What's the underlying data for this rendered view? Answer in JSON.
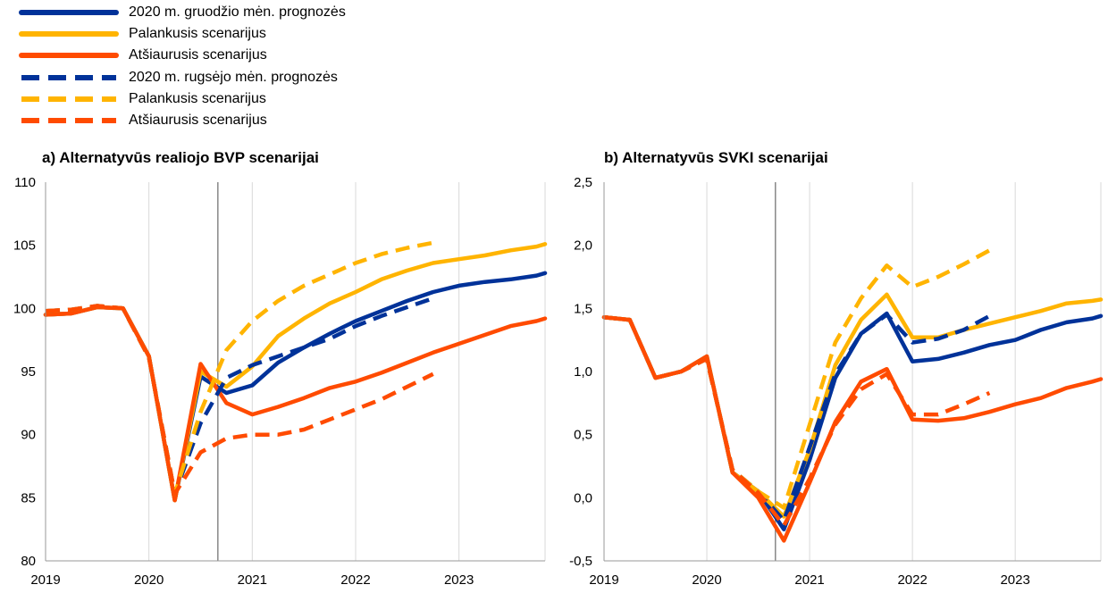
{
  "legend": [
    {
      "label": "2020 m. gruodžio mėn. prognozės",
      "color": "#003299",
      "dashed": false
    },
    {
      "label": "Palankusis scenarijus",
      "color": "#FFB400",
      "dashed": false
    },
    {
      "label": "Atšiaurusis scenarijus",
      "color": "#FF4B00",
      "dashed": false
    },
    {
      "label": "2020 m. rugsėjo mėn. prognozės",
      "color": "#003299",
      "dashed": true
    },
    {
      "label": "Palankusis scenarijus",
      "color": "#FFB400",
      "dashed": true
    },
    {
      "label": "Atšiaurusis scenarijus",
      "color": "#FF4B00",
      "dashed": true
    }
  ],
  "chart_data": [
    {
      "type": "line",
      "title": "a) Alternatyvūs realiojo BVP scenarijai",
      "x_ticks": [
        "2019",
        "2020",
        "2021",
        "2022",
        "2023"
      ],
      "y_ticks": [
        "80",
        "85",
        "90",
        "95",
        "100",
        "105",
        "110"
      ],
      "ylim": [
        80,
        110
      ],
      "xlim": [
        2019.0,
        2023.833
      ],
      "vertical_marker_x": 2020.667,
      "grid": "vertical at year boundaries",
      "series": [
        {
          "name": "2020 m. gruodžio mėn. prognozės",
          "color": "#003299",
          "dashed": false,
          "x": [
            2019.0,
            2019.25,
            2019.5,
            2019.75,
            2020.0,
            2020.25,
            2020.5,
            2020.75,
            2021.0,
            2021.25,
            2021.5,
            2021.75,
            2022.0,
            2022.25,
            2022.5,
            2022.75,
            2023.0,
            2023.25,
            2023.5,
            2023.75,
            2023.833
          ],
          "y": [
            99.5,
            99.6,
            100.1,
            100.0,
            96.2,
            84.8,
            94.6,
            93.3,
            93.9,
            95.7,
            96.9,
            98.0,
            99.0,
            99.8,
            100.6,
            101.3,
            101.8,
            102.1,
            102.3,
            102.6,
            102.8
          ]
        },
        {
          "name": "Palankusis scenarijus",
          "color": "#FFB400",
          "dashed": false,
          "x": [
            2019.0,
            2019.25,
            2019.5,
            2019.75,
            2020.0,
            2020.25,
            2020.5,
            2020.75,
            2021.0,
            2021.25,
            2021.5,
            2021.75,
            2022.0,
            2022.25,
            2022.5,
            2022.75,
            2023.0,
            2023.25,
            2023.5,
            2023.75,
            2023.833
          ],
          "y": [
            99.5,
            99.6,
            100.1,
            100.0,
            96.2,
            84.8,
            95.0,
            93.8,
            95.4,
            97.8,
            99.2,
            100.4,
            101.3,
            102.3,
            103.0,
            103.6,
            103.9,
            104.2,
            104.6,
            104.9,
            105.1
          ]
        },
        {
          "name": "Atšiaurusis scenarijus",
          "color": "#FF4B00",
          "dashed": false,
          "x": [
            2019.0,
            2019.25,
            2019.5,
            2019.75,
            2020.0,
            2020.25,
            2020.5,
            2020.75,
            2021.0,
            2021.25,
            2021.5,
            2021.75,
            2022.0,
            2022.25,
            2022.5,
            2022.75,
            2023.0,
            2023.25,
            2023.5,
            2023.75,
            2023.833
          ],
          "y": [
            99.5,
            99.6,
            100.1,
            100.0,
            96.2,
            84.8,
            95.6,
            92.5,
            91.6,
            92.2,
            92.9,
            93.7,
            94.2,
            94.9,
            95.7,
            96.5,
            97.2,
            97.9,
            98.6,
            99.0,
            99.2
          ]
        },
        {
          "name": "2020 m. rugsėjo mėn. prognozės",
          "color": "#003299",
          "dashed": true,
          "x": [
            2019.0,
            2019.25,
            2019.5,
            2019.75,
            2020.0,
            2020.25,
            2020.5,
            2020.75,
            2021.0,
            2021.25,
            2021.5,
            2021.75,
            2022.0,
            2022.25,
            2022.5,
            2022.75
          ],
          "y": [
            99.8,
            99.9,
            100.2,
            100.0,
            96.1,
            85.3,
            90.9,
            94.5,
            95.5,
            96.2,
            96.9,
            97.6,
            98.6,
            99.4,
            100.1,
            100.8
          ]
        },
        {
          "name": "Palankusis scenarijus",
          "color": "#FFB400",
          "dashed": true,
          "x": [
            2019.0,
            2019.25,
            2019.5,
            2019.75,
            2020.0,
            2020.25,
            2020.5,
            2020.75,
            2021.0,
            2021.25,
            2021.5,
            2021.75,
            2022.0,
            2022.25,
            2022.5,
            2022.75
          ],
          "y": [
            99.8,
            99.9,
            100.2,
            100.0,
            96.1,
            85.3,
            91.8,
            96.7,
            99.0,
            100.6,
            101.8,
            102.7,
            103.6,
            104.3,
            104.8,
            105.2
          ]
        },
        {
          "name": "Atšiaurusis scenarijus",
          "color": "#FF4B00",
          "dashed": true,
          "x": [
            2019.0,
            2019.25,
            2019.5,
            2019.75,
            2020.0,
            2020.25,
            2020.5,
            2020.75,
            2021.0,
            2021.25,
            2021.5,
            2021.75,
            2022.0,
            2022.25,
            2022.5,
            2022.75
          ],
          "y": [
            99.8,
            99.9,
            100.2,
            100.0,
            96.1,
            85.3,
            88.6,
            89.7,
            90.0,
            90.0,
            90.4,
            91.2,
            92.0,
            92.8,
            93.8,
            94.8
          ]
        }
      ]
    },
    {
      "type": "line",
      "title": "b) Alternatyvūs SVKI scenarijai",
      "x_ticks": [
        "2019",
        "2020",
        "2021",
        "2022",
        "2023"
      ],
      "y_ticks": [
        "-0,5",
        "0,0",
        "0,5",
        "1,0",
        "1,5",
        "2,0",
        "2,5"
      ],
      "ylim": [
        -0.5,
        2.5
      ],
      "xlim": [
        2019.0,
        2023.833
      ],
      "vertical_marker_x": 2020.667,
      "grid": "vertical at year boundaries",
      "series": [
        {
          "name": "2020 m. gruodžio mėn. prognozės",
          "color": "#003299",
          "dashed": false,
          "x": [
            2019.0,
            2019.25,
            2019.5,
            2019.75,
            2020.0,
            2020.25,
            2020.5,
            2020.75,
            2021.0,
            2021.25,
            2021.5,
            2021.75,
            2022.0,
            2022.25,
            2022.5,
            2022.75,
            2023.0,
            2023.25,
            2023.5,
            2023.75,
            2023.833
          ],
          "y": [
            1.43,
            1.41,
            0.95,
            1.0,
            1.12,
            0.2,
            0.05,
            -0.25,
            0.3,
            0.95,
            1.3,
            1.46,
            1.08,
            1.1,
            1.15,
            1.21,
            1.25,
            1.33,
            1.39,
            1.42,
            1.44
          ]
        },
        {
          "name": "Palankusis scenarijus",
          "color": "#FFB400",
          "dashed": false,
          "x": [
            2019.0,
            2019.25,
            2019.5,
            2019.75,
            2020.0,
            2020.25,
            2020.5,
            2020.75,
            2021.0,
            2021.25,
            2021.5,
            2021.75,
            2022.0,
            2022.25,
            2022.5,
            2022.75,
            2023.0,
            2023.25,
            2023.5,
            2023.75,
            2023.833
          ],
          "y": [
            1.43,
            1.41,
            0.95,
            1.0,
            1.12,
            0.2,
            0.05,
            -0.15,
            0.38,
            1.05,
            1.41,
            1.61,
            1.27,
            1.27,
            1.33,
            1.38,
            1.43,
            1.48,
            1.54,
            1.56,
            1.57
          ]
        },
        {
          "name": "Atšiaurusis scenarijus",
          "color": "#FF4B00",
          "dashed": false,
          "x": [
            2019.0,
            2019.25,
            2019.5,
            2019.75,
            2020.0,
            2020.25,
            2020.5,
            2020.75,
            2021.0,
            2021.25,
            2021.5,
            2021.75,
            2022.0,
            2022.25,
            2022.5,
            2022.75,
            2023.0,
            2023.25,
            2023.5,
            2023.75,
            2023.833
          ],
          "y": [
            1.43,
            1.41,
            0.95,
            1.0,
            1.12,
            0.2,
            0.0,
            -0.34,
            0.12,
            0.6,
            0.92,
            1.02,
            0.62,
            0.61,
            0.63,
            0.68,
            0.74,
            0.79,
            0.87,
            0.92,
            0.94
          ]
        },
        {
          "name": "2020 m. rugsėjo mėn. prognozės",
          "color": "#003299",
          "dashed": true,
          "x": [
            2019.0,
            2019.25,
            2019.5,
            2019.75,
            2020.0,
            2020.25,
            2020.5,
            2020.75,
            2021.0,
            2021.25,
            2021.5,
            2021.75,
            2022.0,
            2022.25,
            2022.5,
            2022.75
          ],
          "y": [
            1.43,
            1.41,
            0.95,
            1.0,
            1.1,
            0.22,
            0.05,
            -0.18,
            0.4,
            0.98,
            1.3,
            1.45,
            1.23,
            1.26,
            1.33,
            1.44
          ]
        },
        {
          "name": "Palankusis scenarijus",
          "color": "#FFB400",
          "dashed": true,
          "x": [
            2019.0,
            2019.25,
            2019.5,
            2019.75,
            2020.0,
            2020.25,
            2020.5,
            2020.75,
            2021.0,
            2021.25,
            2021.5,
            2021.75,
            2022.0,
            2022.25,
            2022.5,
            2022.75
          ],
          "y": [
            1.43,
            1.41,
            0.95,
            1.0,
            1.1,
            0.22,
            0.05,
            -0.08,
            0.58,
            1.23,
            1.58,
            1.84,
            1.67,
            1.75,
            1.85,
            1.96
          ]
        },
        {
          "name": "Atšiaurusis scenarijus",
          "color": "#FF4B00",
          "dashed": true,
          "x": [
            2019.0,
            2019.25,
            2019.5,
            2019.75,
            2020.0,
            2020.25,
            2020.5,
            2020.75,
            2021.0,
            2021.25,
            2021.5,
            2021.75,
            2022.0,
            2022.25,
            2022.5,
            2022.75
          ],
          "y": [
            1.43,
            1.41,
            0.95,
            1.0,
            1.1,
            0.22,
            0.04,
            -0.22,
            0.15,
            0.58,
            0.86,
            0.98,
            0.66,
            0.66,
            0.74,
            0.83
          ]
        }
      ]
    }
  ]
}
